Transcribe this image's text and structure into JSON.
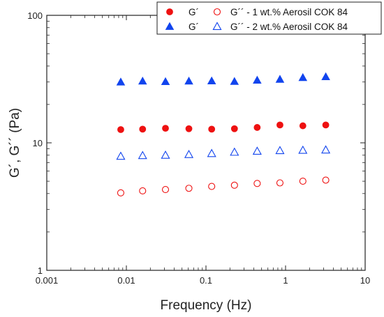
{
  "chart_data": {
    "type": "scatter",
    "xlabel": "Frequency (Hz)",
    "ylabel": "G´, G´´ (Pa)",
    "x_scale": "log",
    "y_scale": "log",
    "xlim": [
      0.001,
      10
    ],
    "ylim": [
      1,
      100
    ],
    "x_ticks": [
      {
        "value": 0.001,
        "label": "0.001"
      },
      {
        "value": 0.01,
        "label": "0.01"
      },
      {
        "value": 0.1,
        "label": "0.1"
      },
      {
        "value": 1,
        "label": "1"
      },
      {
        "value": 10,
        "label": "10"
      }
    ],
    "y_ticks": [
      {
        "value": 1,
        "label": "1"
      },
      {
        "value": 10,
        "label": "10"
      },
      {
        "value": 100,
        "label": "100"
      }
    ],
    "grid": false,
    "legend": {
      "placement": "top-right",
      "rows": [
        {
          "first": "G´",
          "second": "G´´ - 1 wt.% Aerosil COK 84"
        },
        {
          "first": "G´",
          "second": "G´´ - 2 wt.% Aerosil COK 84"
        }
      ]
    },
    "x": [
      0.0085,
      0.016,
      0.031,
      0.061,
      0.118,
      0.228,
      0.44,
      0.85,
      1.65,
      3.2
    ],
    "series": [
      {
        "marker": "circle",
        "filled": true,
        "color": "#ee1111",
        "values": [
          12.7,
          12.8,
          13.0,
          12.9,
          12.8,
          12.9,
          13.2,
          13.8,
          13.6,
          13.8
        ]
      },
      {
        "marker": "circle",
        "filled": false,
        "color": "#ee1111",
        "values": [
          4.05,
          4.2,
          4.3,
          4.4,
          4.55,
          4.65,
          4.8,
          4.85,
          5.0,
          5.1
        ]
      },
      {
        "marker": "triangle",
        "filled": true,
        "color": "#1144ee",
        "values": [
          30.0,
          30.5,
          30.2,
          30.5,
          30.6,
          30.3,
          31.0,
          31.5,
          32.5,
          33.0
        ]
      },
      {
        "marker": "triangle",
        "filled": false,
        "color": "#1144ee",
        "values": [
          7.85,
          7.95,
          8.0,
          8.1,
          8.25,
          8.45,
          8.6,
          8.7,
          8.75,
          8.8
        ]
      }
    ]
  }
}
